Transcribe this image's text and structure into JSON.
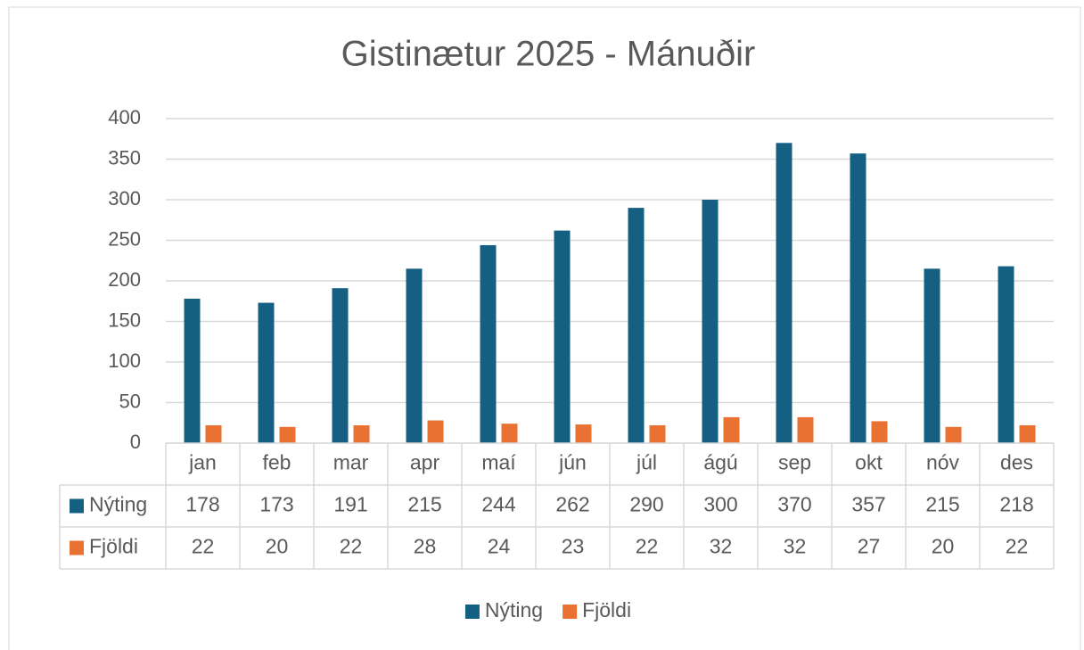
{
  "chart_data": {
    "type": "bar",
    "title": "Gistinætur 2025 - Mánuðir",
    "categories": [
      "jan",
      "feb",
      "mar",
      "apr",
      "maí",
      "jún",
      "júl",
      "ágú",
      "sep",
      "okt",
      "nóv",
      "des"
    ],
    "series": [
      {
        "name": "Nýting",
        "color": "#156082",
        "values": [
          178,
          173,
          191,
          215,
          244,
          262,
          290,
          300,
          370,
          357,
          215,
          218
        ]
      },
      {
        "name": "Fjöldi",
        "color": "#e97132",
        "values": [
          22,
          20,
          22,
          28,
          24,
          23,
          22,
          32,
          32,
          27,
          20,
          22
        ]
      }
    ],
    "ylim": [
      0,
      400
    ],
    "yticks": [
      0,
      50,
      100,
      150,
      200,
      250,
      300,
      350,
      400
    ],
    "grid": true,
    "legend": "bottom",
    "data_table": true
  }
}
